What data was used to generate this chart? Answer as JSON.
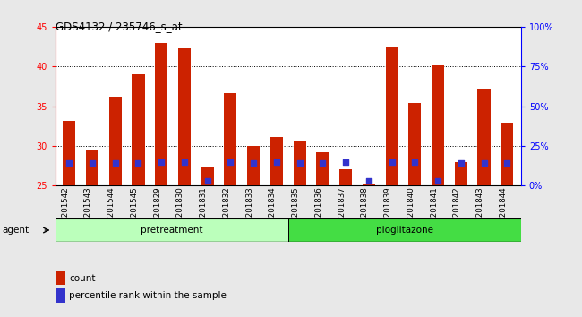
{
  "title": "GDS4132 / 235746_s_at",
  "samples": [
    "GSM201542",
    "GSM201543",
    "GSM201544",
    "GSM201545",
    "GSM201829",
    "GSM201830",
    "GSM201831",
    "GSM201832",
    "GSM201833",
    "GSM201834",
    "GSM201835",
    "GSM201836",
    "GSM201837",
    "GSM201838",
    "GSM201839",
    "GSM201840",
    "GSM201841",
    "GSM201842",
    "GSM201843",
    "GSM201844"
  ],
  "count_values": [
    33.2,
    29.5,
    36.2,
    39.0,
    43.0,
    42.3,
    27.4,
    36.6,
    30.0,
    31.1,
    30.5,
    29.2,
    27.0,
    25.2,
    42.5,
    35.4,
    40.2,
    28.0,
    37.2,
    32.9
  ],
  "percentile_pct": [
    14,
    14,
    14,
    14,
    15,
    15,
    3,
    15,
    14,
    15,
    14,
    14,
    15,
    3,
    15,
    15,
    3,
    14,
    14,
    14
  ],
  "ylim_left": [
    25,
    45
  ],
  "ylim_right": [
    0,
    100
  ],
  "yticks_left": [
    25,
    30,
    35,
    40,
    45
  ],
  "yticks_right": [
    0,
    25,
    50,
    75,
    100
  ],
  "ytick_labels_right": [
    "0%",
    "25%",
    "50%",
    "75%",
    "100%"
  ],
  "bar_color": "#cc2200",
  "percentile_color": "#3333cc",
  "pretreatment_color": "#bbffbb",
  "pioglitazone_color": "#44dd44",
  "pretreatment_samples": 10,
  "pioglitazone_samples": 10,
  "bar_width": 0.55,
  "plot_bg": "#ffffff",
  "fig_bg": "#e8e8e8",
  "legend_count_label": "count",
  "legend_pct_label": "percentile rank within the sample",
  "percentile_marker_size": 18,
  "bar_bottom": 25,
  "grid_dotted_ticks": [
    30,
    35,
    40
  ]
}
